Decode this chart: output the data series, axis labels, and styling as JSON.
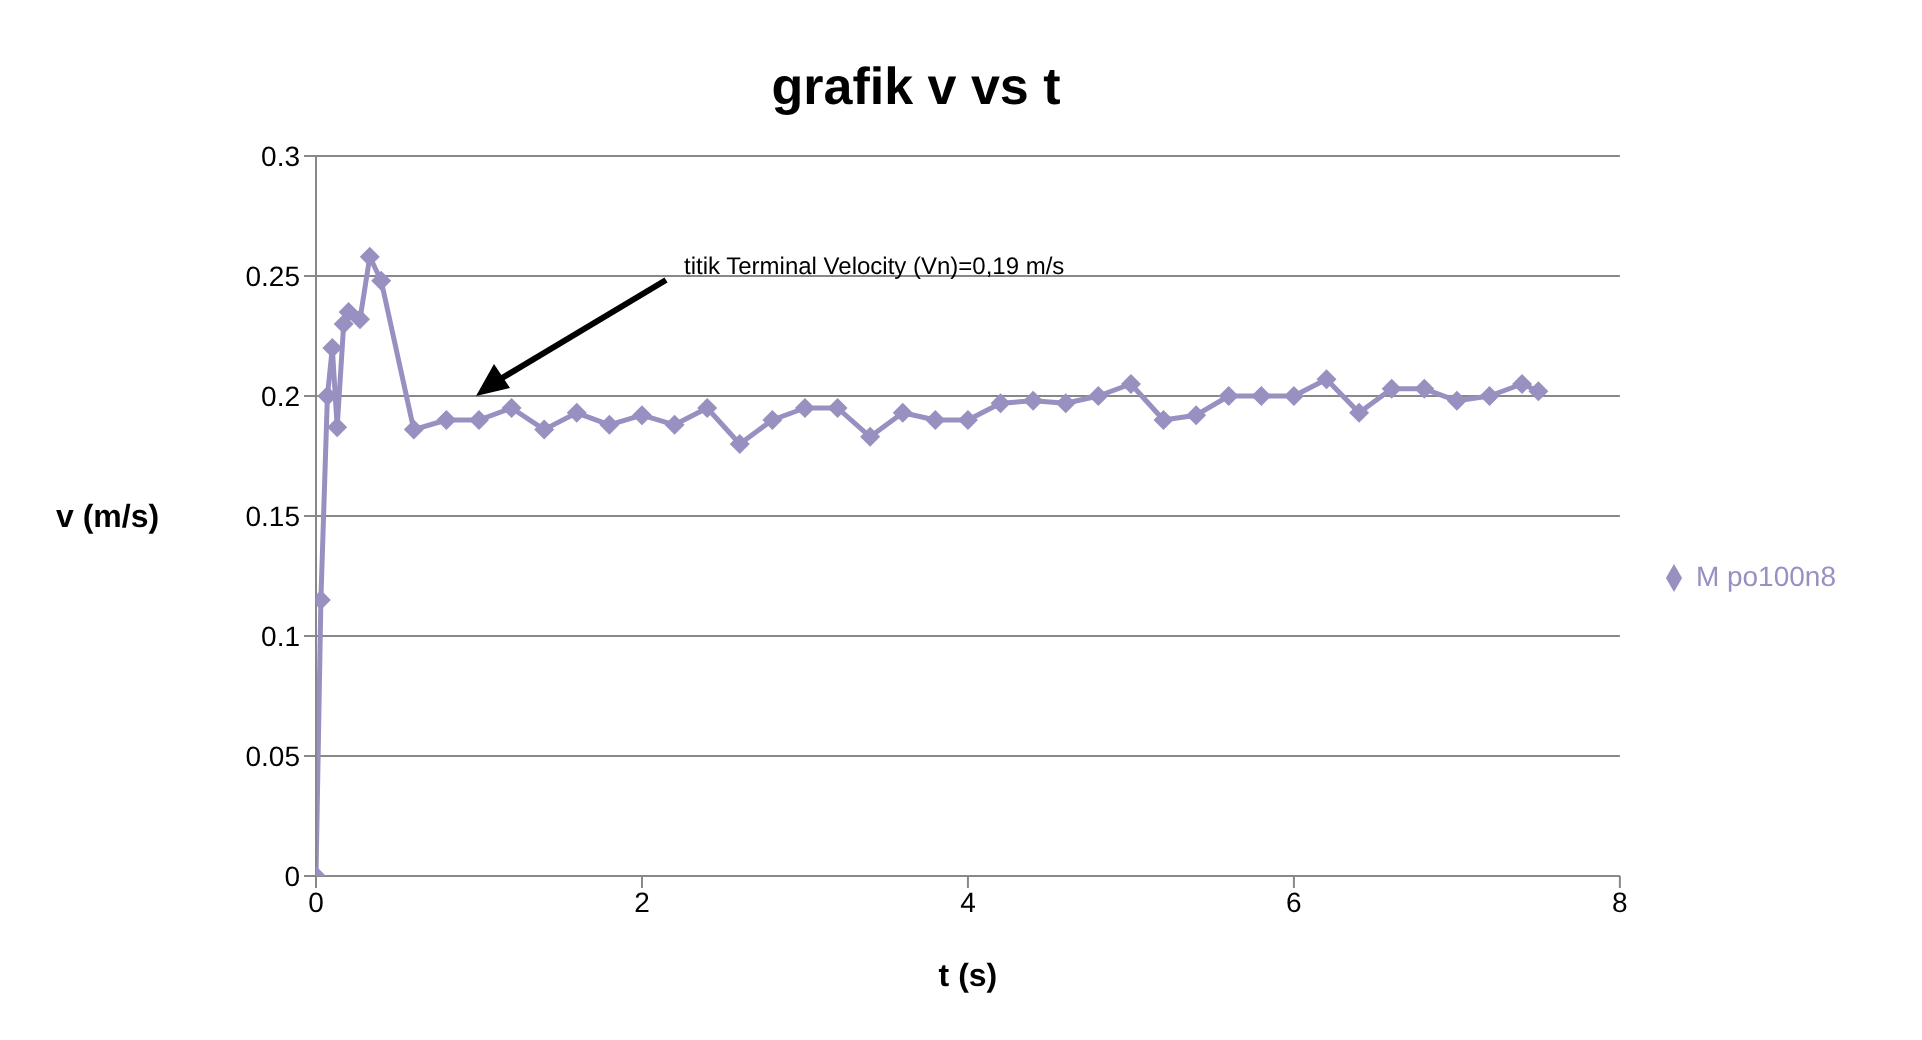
{
  "chart_data": {
    "type": "line",
    "title": "grafik v vs t",
    "xlabel": "t (s)",
    "ylabel": "v (m/s)",
    "marker": "diamond",
    "grid": "y",
    "legend": "right",
    "xlim": [
      0,
      8
    ],
    "xticks": [
      0,
      2,
      4,
      6,
      8
    ],
    "ylim": [
      0,
      0.3
    ],
    "yticks": [
      0,
      0.05,
      0.1,
      0.15,
      0.2,
      0.25,
      0.3
    ],
    "annotations": [
      "titik Terminal Velocity (Vn)=0,19 m/s"
    ],
    "series": [
      {
        "name": "M po100n8",
        "color": "#9890c0",
        "x": [
          0,
          0.03,
          0.07,
          0.1,
          0.13,
          0.17,
          0.2,
          0.27,
          0.33,
          0.4,
          0.6,
          0.8,
          1.0,
          1.2,
          1.4,
          1.6,
          1.8,
          2.0,
          2.2,
          2.4,
          2.6,
          2.8,
          3.0,
          3.2,
          3.4,
          3.6,
          3.8,
          4.0,
          4.2,
          4.4,
          4.6,
          4.8,
          5.0,
          5.2,
          5.4,
          5.6,
          5.8,
          6.0,
          6.2,
          6.4,
          6.6,
          6.8,
          7.0,
          7.2,
          7.4,
          7.5
        ],
        "values": [
          0,
          0.115,
          0.2,
          0.22,
          0.187,
          0.23,
          0.235,
          0.232,
          0.258,
          0.248,
          0.186,
          0.19,
          0.19,
          0.195,
          0.186,
          0.193,
          0.188,
          0.192,
          0.188,
          0.195,
          0.18,
          0.19,
          0.195,
          0.195,
          0.183,
          0.193,
          0.19,
          0.19,
          0.197,
          0.198,
          0.197,
          0.2,
          0.205,
          0.19,
          0.192,
          0.2,
          0.2,
          0.2,
          0.207,
          0.193,
          0.203,
          0.203,
          0.198,
          0.2,
          0.205,
          0.202
        ]
      }
    ]
  }
}
